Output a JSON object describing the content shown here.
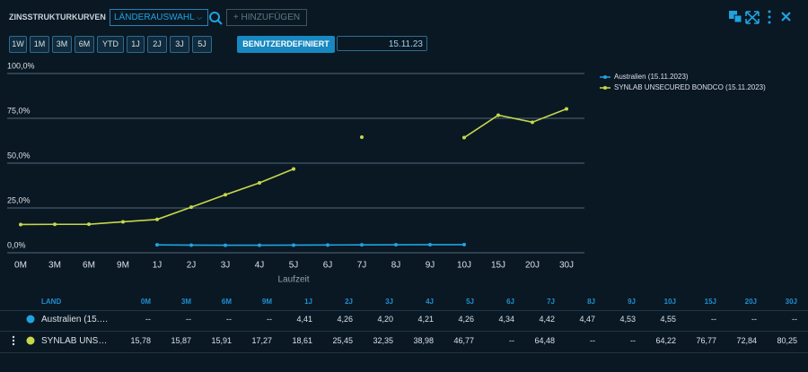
{
  "toolbar": {
    "title": "ZINSSTRUKTURKURVEN",
    "select": "LÄNDERAUSWAHL",
    "add": "HINZUFÜGEN",
    "periods": [
      "1W",
      "1M",
      "3M",
      "6M",
      "YTD",
      "1J",
      "2J",
      "3J",
      "5J"
    ],
    "custom": "BENUTZERDEFINIERT",
    "date": "15.11.23"
  },
  "table": {
    "land_header": "LAND"
  },
  "chart_data": {
    "type": "line",
    "x_label": "Laufzeit",
    "categories": [
      "0M",
      "3M",
      "6M",
      "9M",
      "1J",
      "2J",
      "3J",
      "4J",
      "5J",
      "6J",
      "7J",
      "8J",
      "9J",
      "10J",
      "15J",
      "20J",
      "30J"
    ],
    "ylim": [
      0,
      100
    ],
    "yticks": [
      {
        "value": 0,
        "label": "0,0%"
      },
      {
        "value": 25,
        "label": "25,0%"
      },
      {
        "value": 50,
        "label": "50,0%"
      },
      {
        "value": 75,
        "label": "75,0%"
      },
      {
        "value": 100,
        "label": "100,0%"
      }
    ],
    "grid": true,
    "series": [
      {
        "name": "Australien (15.11.2023)",
        "color": "#1fa3e0",
        "values": [
          null,
          null,
          null,
          null,
          4.41,
          4.26,
          4.2,
          4.21,
          4.26,
          4.34,
          4.42,
          4.47,
          4.53,
          4.55,
          null,
          null,
          null
        ],
        "value_labels": [
          "--",
          "--",
          "--",
          "--",
          "4,41",
          "4,26",
          "4,20",
          "4,21",
          "4,26",
          "4,34",
          "4,42",
          "4,47",
          "4,53",
          "4,55",
          "--",
          "--",
          "--"
        ]
      },
      {
        "name": "SYNLAB UNSECURED BONDCO (15.11.2023)",
        "color": "#c6d74a",
        "values": [
          15.78,
          15.87,
          15.91,
          17.27,
          18.61,
          25.45,
          32.35,
          38.98,
          46.77,
          null,
          64.48,
          null,
          null,
          64.22,
          76.77,
          72.84,
          80.25
        ],
        "value_labels": [
          "15,78",
          "15,87",
          "15,91",
          "17,27",
          "18,61",
          "25,45",
          "32,35",
          "38,98",
          "46,77",
          "--",
          "64,48",
          "--",
          "--",
          "64,22",
          "76,77",
          "72,84",
          "80,25"
        ]
      }
    ]
  }
}
